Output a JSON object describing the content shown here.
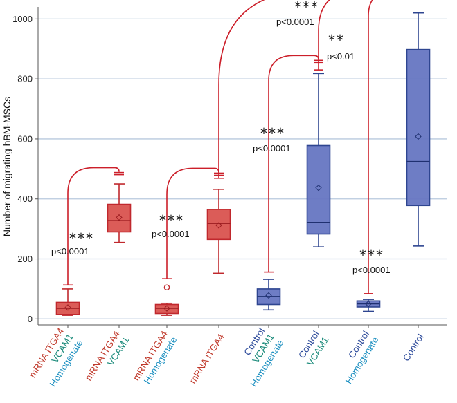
{
  "chart_data": {
    "type": "box",
    "ylabel": "Number of migrating hBM-MSCs",
    "ylim": [
      -20,
      1040
    ],
    "yticks": [
      0,
      200,
      400,
      600,
      800,
      1000
    ],
    "grid": true,
    "groups": [
      {
        "label_lines": [
          {
            "text": "mRNA ITGA4",
            "color": "#c0392b"
          },
          {
            "text": "VCAM1",
            "color": "#1a8a7a"
          },
          {
            "text": "Homogenate",
            "color": "#1b8fc0"
          }
        ],
        "color": "red",
        "min": 12,
        "q1": 15,
        "median": 35,
        "q3": 55,
        "max": 100,
        "mean": 38,
        "outliers": []
      },
      {
        "label_lines": [
          {
            "text": "mRNA ITGA4",
            "color": "#c0392b"
          },
          {
            "text": "VCAM1",
            "color": "#1a8a7a"
          }
        ],
        "color": "red",
        "min": 255,
        "q1": 290,
        "median": 328,
        "q3": 382,
        "max": 450,
        "mean": 338,
        "outliers": []
      },
      {
        "label_lines": [
          {
            "text": "mRNA ITGA4",
            "color": "#c0392b"
          },
          {
            "text": "Homogenate",
            "color": "#1b8fc0"
          }
        ],
        "color": "red",
        "min": 12,
        "q1": 18,
        "median": 35,
        "q3": 48,
        "max": 52,
        "mean": 35,
        "outliers": [
          105
        ]
      },
      {
        "label_lines": [
          {
            "text": "mRNA ITGA4",
            "color": "#c0392b"
          }
        ],
        "color": "red",
        "min": 152,
        "q1": 265,
        "median": 318,
        "q3": 365,
        "max": 432,
        "mean": 312,
        "outliers": []
      },
      {
        "label_lines": [
          {
            "text": "Control",
            "color": "#2c4a9a"
          },
          {
            "text": "VCAM1",
            "color": "#1a8a7a"
          },
          {
            "text": "Homogenate",
            "color": "#1b8fc0"
          }
        ],
        "color": "blue",
        "min": 30,
        "q1": 48,
        "median": 75,
        "q3": 100,
        "max": 132,
        "mean": 78,
        "outliers": []
      },
      {
        "label_lines": [
          {
            "text": "Control",
            "color": "#2c4a9a"
          },
          {
            "text": "VCAM1",
            "color": "#1a8a7a"
          }
        ],
        "color": "blue",
        "min": 240,
        "q1": 283,
        "median": 322,
        "q3": 578,
        "max": 818,
        "mean": 437,
        "outliers": []
      },
      {
        "label_lines": [
          {
            "text": "Control",
            "color": "#2c4a9a"
          },
          {
            "text": "Homogenate",
            "color": "#1b8fc0"
          }
        ],
        "color": "blue",
        "min": 25,
        "q1": 40,
        "median": 50,
        "q3": 60,
        "max": 65,
        "mean": 50,
        "outliers": []
      },
      {
        "label_lines": [
          {
            "text": "Control",
            "color": "#2c4a9a"
          }
        ],
        "color": "blue",
        "min": 243,
        "q1": 378,
        "median": 525,
        "q3": 898,
        "max": 1020,
        "mean": 608,
        "outliers": []
      }
    ],
    "comparisons": [
      {
        "from": 0,
        "to": 1,
        "stars": "***",
        "p": "p<0.0001"
      },
      {
        "from": 2,
        "to": 3,
        "stars": "***",
        "p": "p<0.0001"
      },
      {
        "from": 3,
        "to": 7,
        "stars": "***",
        "p": "p<0.0001"
      },
      {
        "from": 4,
        "to": 5,
        "stars": "***",
        "p": "p<0.0001"
      },
      {
        "from": 5,
        "to": 7,
        "stars": "**",
        "p": "p<0.01"
      },
      {
        "from": 6,
        "to": 7,
        "stars": "***",
        "p": "p<0.0001"
      }
    ]
  },
  "colors": {
    "red_fill": "#d9534f",
    "red_stroke": "#c0282d",
    "red_median": "#9b1b1f",
    "blue_fill": "#6676c2",
    "blue_stroke": "#2e4590",
    "blue_median": "#1f3070",
    "grid": "#b8c9de",
    "bracket": "#cc1f2a",
    "axis": "#555555"
  }
}
